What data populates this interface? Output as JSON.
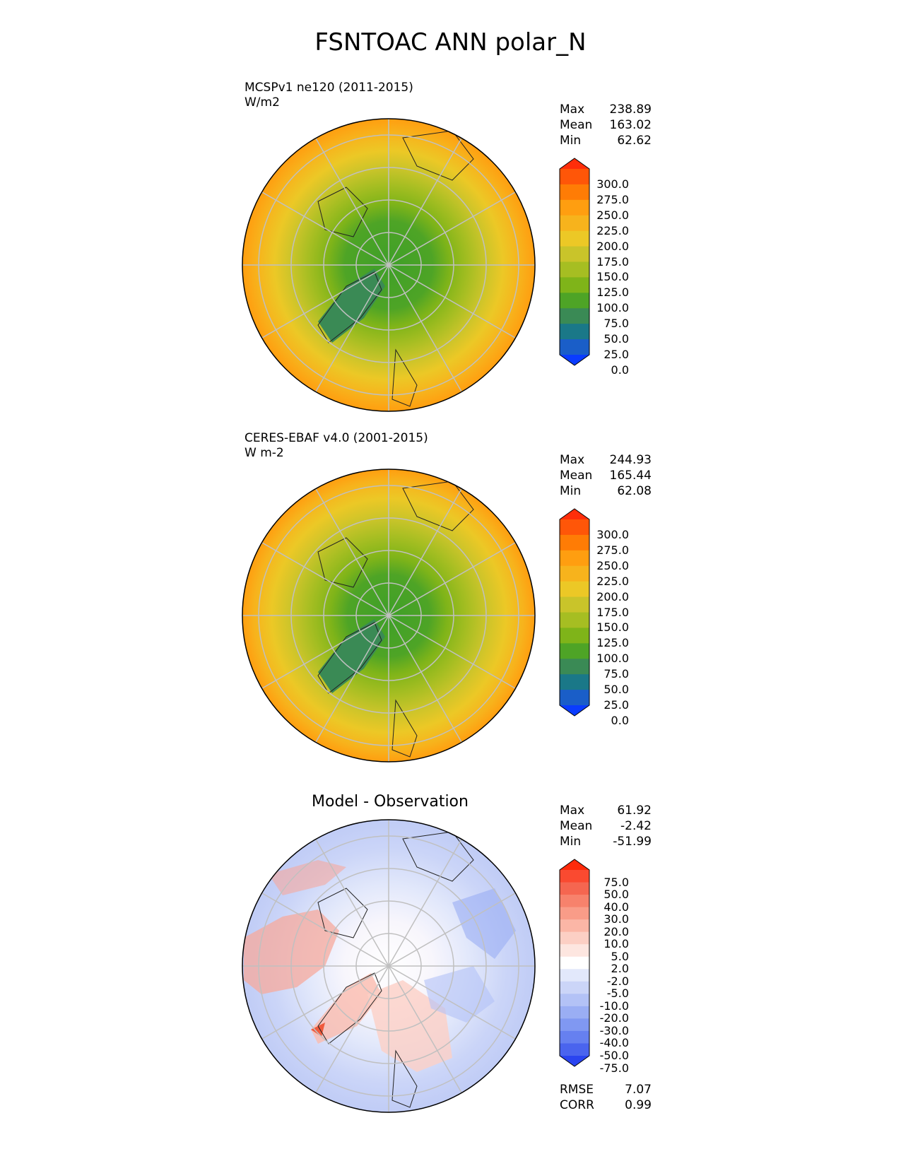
{
  "title": "FSNTOAC ANN polar_N",
  "panels": [
    {
      "line1": "MCSPv1 ne120 (2011-2015)",
      "line2": "W/m2",
      "stats": [
        {
          "label": "Max",
          "value": "238.89"
        },
        {
          "label": "Mean",
          "value": "163.02"
        },
        {
          "label": "Min",
          "value": "62.62"
        }
      ],
      "colorbar": {
        "ticks": [
          "300.0",
          "275.0",
          "250.0",
          "225.0",
          "200.0",
          "175.0",
          "150.0",
          "125.0",
          "100.0",
          "75.0",
          "50.0",
          "25.0",
          "0.0"
        ],
        "colors_top_to_bottom": [
          "#ff2e0a",
          "#ff5608",
          "#ff7c05",
          "#ff9e10",
          "#f7b31c",
          "#ecc826",
          "#c9c42a",
          "#a6be22",
          "#7fb419",
          "#4ea426",
          "#3a8a55",
          "#1a7888",
          "#1a5ec8",
          "#0a3cff"
        ]
      }
    },
    {
      "line1": "CERES-EBAF v4.0 (2001-2015)",
      "line2": "W m-2",
      "stats": [
        {
          "label": "Max",
          "value": "244.93"
        },
        {
          "label": "Mean",
          "value": "165.44"
        },
        {
          "label": "Min",
          "value": "62.08"
        }
      ],
      "colorbar": {
        "ticks": [
          "300.0",
          "275.0",
          "250.0",
          "225.0",
          "200.0",
          "175.0",
          "150.0",
          "125.0",
          "100.0",
          "75.0",
          "50.0",
          "25.0",
          "0.0"
        ],
        "colors_top_to_bottom": [
          "#ff2e0a",
          "#ff5608",
          "#ff7c05",
          "#ff9e10",
          "#f7b31c",
          "#ecc826",
          "#c9c42a",
          "#a6be22",
          "#7fb419",
          "#4ea426",
          "#3a8a55",
          "#1a7888",
          "#1a5ec8",
          "#0a3cff"
        ]
      }
    },
    {
      "title": "Model - Observation",
      "stats": [
        {
          "label": "Max",
          "value": "61.92"
        },
        {
          "label": "Mean",
          "value": "-2.42"
        },
        {
          "label": "Min",
          "value": "-51.99"
        }
      ],
      "colorbar": {
        "ticks": [
          "75.0",
          "50.0",
          "40.0",
          "30.0",
          "20.0",
          "10.0",
          "5.0",
          "2.0",
          "-2.0",
          "-5.0",
          "-10.0",
          "-20.0",
          "-30.0",
          "-40.0",
          "-50.0",
          "-75.0"
        ],
        "colors_top_to_bottom": [
          "#ff2a0a",
          "#fa4a30",
          "#f56650",
          "#f7826c",
          "#f99c88",
          "#fbb6a6",
          "#fccfc4",
          "#fde6e0",
          "#ffffff",
          "#e2e8fb",
          "#cbd5f8",
          "#b3c2f6",
          "#9aaef4",
          "#8098f2",
          "#6680f0",
          "#4a64ee",
          "#2a44f0"
        ]
      },
      "metrics": [
        {
          "label": "RMSE",
          "value": "7.07"
        },
        {
          "label": "CORR",
          "value": "0.99"
        }
      ]
    }
  ]
}
